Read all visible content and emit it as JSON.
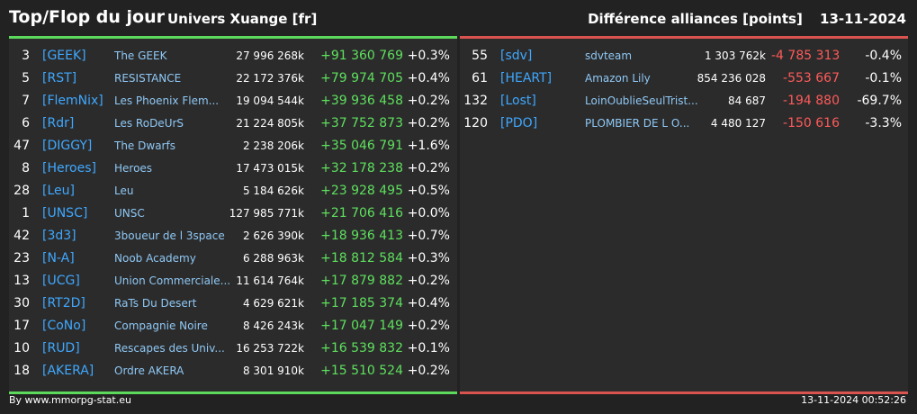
{
  "header": {
    "title": "Top/Flop du jour",
    "universe": "Univers Xuange [fr]",
    "section": "Différence alliances [points]",
    "date": "13-11-2024"
  },
  "top": [
    {
      "rank": "3",
      "tag": "[GEEK]",
      "name": "The GEEK",
      "points": "27 996 268k",
      "delta": "+91 360 769",
      "pct": "+0.3%"
    },
    {
      "rank": "5",
      "tag": "[RST]",
      "name": "RESISTANCE",
      "points": "22 172 376k",
      "delta": "+79 974 705",
      "pct": "+0.4%"
    },
    {
      "rank": "7",
      "tag": "[FlemNix]",
      "name": "Les Phoenix Flem...",
      "points": "19 094 544k",
      "delta": "+39 936 458",
      "pct": "+0.2%"
    },
    {
      "rank": "6",
      "tag": "[Rdr]",
      "name": "Les RoDeUrS",
      "points": "21 224 805k",
      "delta": "+37 752 873",
      "pct": "+0.2%"
    },
    {
      "rank": "47",
      "tag": "[DIGGY]",
      "name": "The Dwarfs",
      "points": "2 238 206k",
      "delta": "+35 046 791",
      "pct": "+1.6%"
    },
    {
      "rank": "8",
      "tag": "[Heroes]",
      "name": "Heroes",
      "points": "17 473 015k",
      "delta": "+32 178 238",
      "pct": "+0.2%"
    },
    {
      "rank": "28",
      "tag": "[Leu]",
      "name": "Leu",
      "points": "5 184 626k",
      "delta": "+23 928 495",
      "pct": "+0.5%"
    },
    {
      "rank": "1",
      "tag": "[UNSC]",
      "name": "UNSC",
      "points": "127 985 771k",
      "delta": "+21 706 416",
      "pct": "+0.0%"
    },
    {
      "rank": "42",
      "tag": "[3d3]",
      "name": "3boueur de l 3space",
      "points": "2 626 390k",
      "delta": "+18 936 413",
      "pct": "+0.7%"
    },
    {
      "rank": "23",
      "tag": "[N-A]",
      "name": "Noob Academy",
      "points": "6 288 963k",
      "delta": "+18 812 584",
      "pct": "+0.3%"
    },
    {
      "rank": "13",
      "tag": "[UCG]",
      "name": "Union Commerciale...",
      "points": "11 614 764k",
      "delta": "+17 879 882",
      "pct": "+0.2%"
    },
    {
      "rank": "30",
      "tag": "[RT2D]",
      "name": "RaTs Du Desert",
      "points": "4 629 621k",
      "delta": "+17 185 374",
      "pct": "+0.4%"
    },
    {
      "rank": "17",
      "tag": "[CoNo]",
      "name": "Compagnie Noire",
      "points": "8 426 243k",
      "delta": "+17 047 149",
      "pct": "+0.2%"
    },
    {
      "rank": "10",
      "tag": "[RUD]",
      "name": "Rescapes des Univ...",
      "points": "16 253 722k",
      "delta": "+16 539 832",
      "pct": "+0.1%"
    },
    {
      "rank": "18",
      "tag": "[AKERA]",
      "name": "Ordre AKERA",
      "points": "8 301 910k",
      "delta": "+15 510 524",
      "pct": "+0.2%"
    }
  ],
  "flop": [
    {
      "rank": "55",
      "tag": "[sdv]",
      "name": "sdvteam",
      "points": "1 303 762k",
      "delta": "-4 785 313",
      "pct": "-0.4%"
    },
    {
      "rank": "61",
      "tag": "[HEART]",
      "name": "Amazon Lily",
      "points": "854 236 028",
      "delta": "-553 667",
      "pct": "-0.1%"
    },
    {
      "rank": "132",
      "tag": "[Lost]",
      "name": "LoinOublieSeulTrist...",
      "points": "84 687",
      "delta": "-194 880",
      "pct": "-69.7%"
    },
    {
      "rank": "120",
      "tag": "[PDO]",
      "name": "PLOMBIER DE L O...",
      "points": "4 480 127",
      "delta": "-150 616",
      "pct": "-3.3%"
    }
  ],
  "footer": {
    "credit": "By www.mmorpg-stat.eu",
    "timestamp": "13-11-2024 00:52:26"
  },
  "colors": {
    "positive": "#5ee05e",
    "negative": "#ff5a5a",
    "tag": "#3fa8ff",
    "name": "#8fc8f5"
  }
}
